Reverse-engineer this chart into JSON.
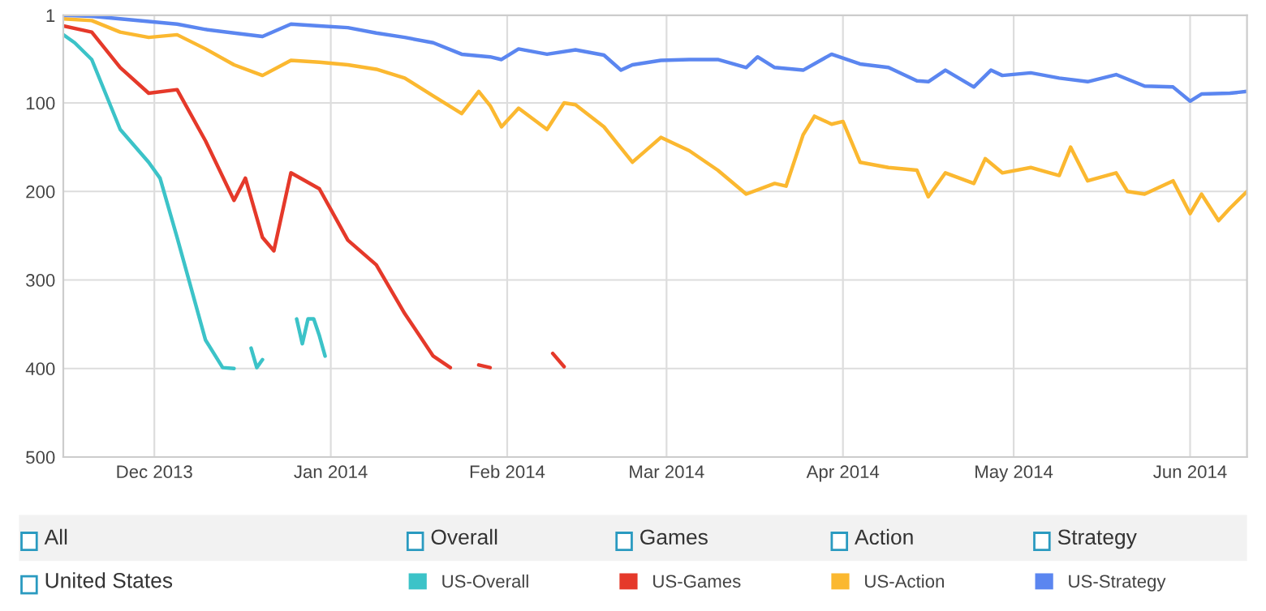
{
  "chart_data": {
    "type": "line",
    "xlim": [
      "2013-11-15",
      "2014-06-11"
    ],
    "xticks": [
      {
        "value": "2013-12-01",
        "label": "Dec 2013"
      },
      {
        "value": "2014-01-01",
        "label": "Jan 2014"
      },
      {
        "value": "2014-02-01",
        "label": "Feb 2014"
      },
      {
        "value": "2014-03-01",
        "label": "Mar 2014"
      },
      {
        "value": "2014-04-01",
        "label": "Apr 2014"
      },
      {
        "value": "2014-05-01",
        "label": "May 2014"
      },
      {
        "value": "2014-06-01",
        "label": "Jun 2014"
      }
    ],
    "ylim": [
      500,
      1
    ],
    "yticks": [
      1,
      100,
      200,
      300,
      400,
      500
    ],
    "grid": true,
    "legend": "bottom",
    "line_style": "solid",
    "annotations": [
      "All",
      "Overall",
      "Games",
      "Action",
      "Strategy",
      "United States"
    ],
    "series": [
      {
        "name": "US-Overall",
        "color": "#3cc3c8",
        "x": [
          "2013-11-15",
          "2013-11-17",
          "2013-11-20",
          "2013-11-25",
          "2013-11-30",
          "2013-12-02",
          "2013-12-05",
          "2013-12-10",
          "2013-12-13",
          "2013-12-15",
          "2013-12-16",
          "2013-12-18",
          "2013-12-19",
          "2013-12-20",
          "2013-12-25",
          "2013-12-26",
          "2013-12-27",
          "2013-12-28",
          "2013-12-29",
          "2013-12-30",
          "2013-12-31"
        ],
        "values": [
          23,
          32,
          51,
          130,
          167,
          185,
          252,
          368,
          399,
          400,
          null,
          377,
          399,
          390,
          null,
          344,
          372,
          344,
          344,
          363,
          386
        ]
      },
      {
        "name": "US-Games",
        "color": "#e5392a",
        "x": [
          "2013-11-15",
          "2013-11-20",
          "2013-11-25",
          "2013-11-30",
          "2013-12-05",
          "2013-12-10",
          "2013-12-15",
          "2013-12-17",
          "2013-12-20",
          "2013-12-22",
          "2013-12-25",
          "2013-12-30",
          "2014-01-04",
          "2014-01-09",
          "2014-01-14",
          "2014-01-19",
          "2014-01-22",
          "2014-01-25",
          "2014-01-27",
          "2014-01-29",
          "2014-02-05",
          "2014-02-09",
          "2014-02-11"
        ],
        "values": [
          13,
          20,
          60,
          89,
          85,
          143,
          210,
          185,
          252,
          267,
          179,
          197,
          255,
          283,
          338,
          386,
          399,
          null,
          396,
          399,
          null,
          383,
          398
        ]
      },
      {
        "name": "US-Action",
        "color": "#fbb830",
        "x": [
          "2013-11-15",
          "2013-11-20",
          "2013-11-25",
          "2013-11-30",
          "2013-12-05",
          "2013-12-10",
          "2013-12-15",
          "2013-12-20",
          "2013-12-25",
          "2013-12-30",
          "2014-01-04",
          "2014-01-09",
          "2014-01-14",
          "2014-01-19",
          "2014-01-24",
          "2014-01-27",
          "2014-01-29",
          "2014-01-31",
          "2014-02-03",
          "2014-02-08",
          "2014-02-11",
          "2014-02-13",
          "2014-02-18",
          "2014-02-23",
          "2014-02-28",
          "2014-03-05",
          "2014-03-10",
          "2014-03-15",
          "2014-03-20",
          "2014-03-22",
          "2014-03-25",
          "2014-03-27",
          "2014-03-30",
          "2014-04-01",
          "2014-04-04",
          "2014-04-09",
          "2014-04-14",
          "2014-04-16",
          "2014-04-19",
          "2014-04-24",
          "2014-04-26",
          "2014-04-29",
          "2014-05-04",
          "2014-05-09",
          "2014-05-11",
          "2014-05-14",
          "2014-05-19",
          "2014-05-21",
          "2014-05-24",
          "2014-05-29",
          "2014-06-01",
          "2014-06-03",
          "2014-06-06",
          "2014-06-08",
          "2014-06-11"
        ],
        "values": [
          5,
          7,
          20,
          26,
          23,
          39,
          57,
          69,
          52,
          54,
          57,
          62,
          72,
          92,
          112,
          87,
          103,
          127,
          106,
          130,
          100,
          102,
          127,
          167,
          139,
          154,
          176,
          203,
          191,
          194,
          136,
          115,
          124,
          121,
          167,
          173,
          176,
          206,
          179,
          191,
          163,
          179,
          173,
          182,
          150,
          188,
          179,
          200,
          203,
          188,
          225,
          203,
          233,
          219,
          200
        ]
      },
      {
        "name": "US-Strategy",
        "color": "#5b86f0",
        "x": [
          "2013-11-15",
          "2013-11-20",
          "2013-11-25",
          "2013-11-30",
          "2013-12-05",
          "2013-12-10",
          "2013-12-15",
          "2013-12-20",
          "2013-12-25",
          "2013-12-30",
          "2014-01-04",
          "2014-01-09",
          "2014-01-14",
          "2014-01-19",
          "2014-01-24",
          "2014-01-29",
          "2014-01-31",
          "2014-02-03",
          "2014-02-08",
          "2014-02-13",
          "2014-02-18",
          "2014-02-21",
          "2014-02-23",
          "2014-02-28",
          "2014-03-05",
          "2014-03-10",
          "2014-03-15",
          "2014-03-17",
          "2014-03-20",
          "2014-03-25",
          "2014-03-30",
          "2014-04-04",
          "2014-04-09",
          "2014-04-14",
          "2014-04-16",
          "2014-04-19",
          "2014-04-24",
          "2014-04-27",
          "2014-04-29",
          "2014-05-04",
          "2014-05-09",
          "2014-05-14",
          "2014-05-19",
          "2014-05-24",
          "2014-05-29",
          "2014-06-01",
          "2014-06-03",
          "2014-06-08",
          "2014-06-11"
        ],
        "values": [
          1,
          2,
          5,
          8,
          11,
          17,
          21,
          25,
          11,
          13,
          15,
          21,
          26,
          32,
          45,
          48,
          51,
          39,
          45,
          40,
          46,
          63,
          57,
          52,
          51,
          51,
          60,
          48,
          60,
          63,
          45,
          56,
          60,
          75,
          76,
          63,
          82,
          63,
          69,
          66,
          72,
          76,
          68,
          81,
          82,
          98,
          90,
          89,
          87
        ]
      }
    ]
  }
}
